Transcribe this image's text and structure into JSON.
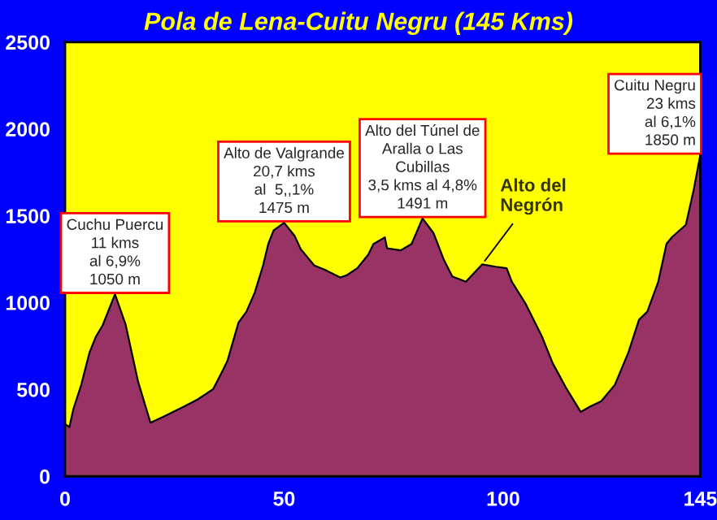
{
  "chart_data": {
    "type": "area",
    "title": "Pola de Lena-Cuitu Negru (145 Kms)",
    "x": [
      0,
      1,
      1.9,
      3.7,
      5.6,
      7,
      8.6,
      11.4,
      13.8,
      16.7,
      19.5,
      22.2,
      27.2,
      30.3,
      33.8,
      35.9,
      37.1,
      39.6,
      41.4,
      43.3,
      45.2,
      46.4,
      47.6,
      50,
      52.4,
      53.8,
      56.9,
      59.3,
      62.8,
      64.3,
      66.7,
      69.2,
      70.4,
      73,
      73.5,
      76.6,
      79.1,
      81.6,
      84.1,
      86.5,
      88.4,
      91.5,
      95.2,
      98.3,
      100.8,
      102,
      105.1,
      108.8,
      111.3,
      114.3,
      116.2,
      117.7,
      119.9,
      122.4,
      125.5,
      128.6,
      131,
      132.9,
      135.4,
      137.3,
      138.6,
      141.7,
      143.5,
      145
    ],
    "series": [
      {
        "color": "#993366",
        "values": [
          300,
          284,
          387,
          527,
          714,
          802,
          870,
          1048,
          877,
          543,
          309,
          340,
          402,
          443,
          502,
          605,
          667,
          886,
          948,
          1058,
          1214,
          1339,
          1416,
          1460,
          1385,
          1308,
          1214,
          1189,
          1145,
          1158,
          1198,
          1276,
          1338,
          1376,
          1313,
          1301,
          1338,
          1485,
          1401,
          1245,
          1151,
          1120,
          1220,
          1207,
          1198,
          1120,
          995,
          808,
          652,
          512,
          433,
          371,
          402,
          433,
          527,
          714,
          901,
          948,
          1120,
          1339,
          1379,
          1448,
          1650,
          1850
        ]
      }
    ],
    "xlim": [
      0,
      145
    ],
    "xticks": [
      0,
      50,
      100,
      145
    ],
    "ylim": [
      0,
      2500
    ],
    "yticks": [
      0,
      500,
      1000,
      1500,
      2000,
      2500
    ],
    "grid": false,
    "legend": false,
    "annotations": [
      {
        "text": "Cuchu Puercu\n11 kms\nal 6,9%\n1050 m",
        "x": 11.4,
        "y": 1048
      },
      {
        "text": "Alto de Valgrande\n20,7 kms\nal  5,,1%\n1475 m",
        "x": 50,
        "y": 1460
      },
      {
        "text": "Alto del Túnel de\nAralla o Las\nCubillas\n3,5 kms al 4,8%\n1491 m",
        "x": 81.6,
        "y": 1485
      },
      {
        "text": "Cuitu Negru\n23 kms\nal 6,1%\n1850 m",
        "x": 145,
        "y": 1850
      },
      {
        "text": "Alto del\nNegrón",
        "x": 95.2,
        "y": 1220
      }
    ]
  }
}
